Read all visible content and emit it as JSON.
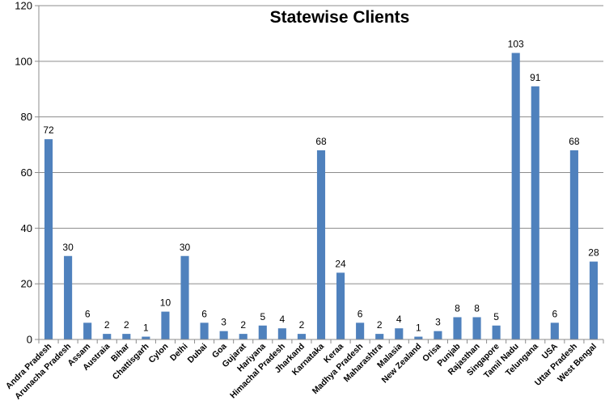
{
  "chart_data": {
    "type": "bar",
    "title": "Statewise Clients",
    "xlabel": "",
    "ylabel": "",
    "ylim": [
      0,
      120
    ],
    "yticks": [
      0,
      20,
      40,
      60,
      80,
      100,
      120
    ],
    "grid": true,
    "legend": "none",
    "bar_color": "#4f81bd",
    "categories": [
      "Andra Pradesh",
      "Arunacha Pradesh",
      "Assam",
      "Austraia",
      "Bihar",
      "Chattisgarh",
      "Cylon",
      "Delhi",
      "Dubai",
      "Goa",
      "Gujarat",
      "Hariyana",
      "Himachal Pradesh",
      "Jharkand",
      "Karnataka",
      "Keraa",
      "Madhya Pradesh",
      "Maharashtra",
      "Malasia",
      "New Zealand",
      "Orisa",
      "Punjab",
      "Rajasthan",
      "Singapore",
      "Tamil Nadu",
      "Telungana",
      "USA",
      "Uttar Pradesh",
      "West Bengal"
    ],
    "values": [
      72,
      30,
      6,
      2,
      2,
      1,
      10,
      30,
      6,
      3,
      2,
      5,
      4,
      2,
      68,
      24,
      6,
      2,
      4,
      1,
      3,
      8,
      8,
      5,
      103,
      91,
      6,
      68,
      28
    ]
  }
}
